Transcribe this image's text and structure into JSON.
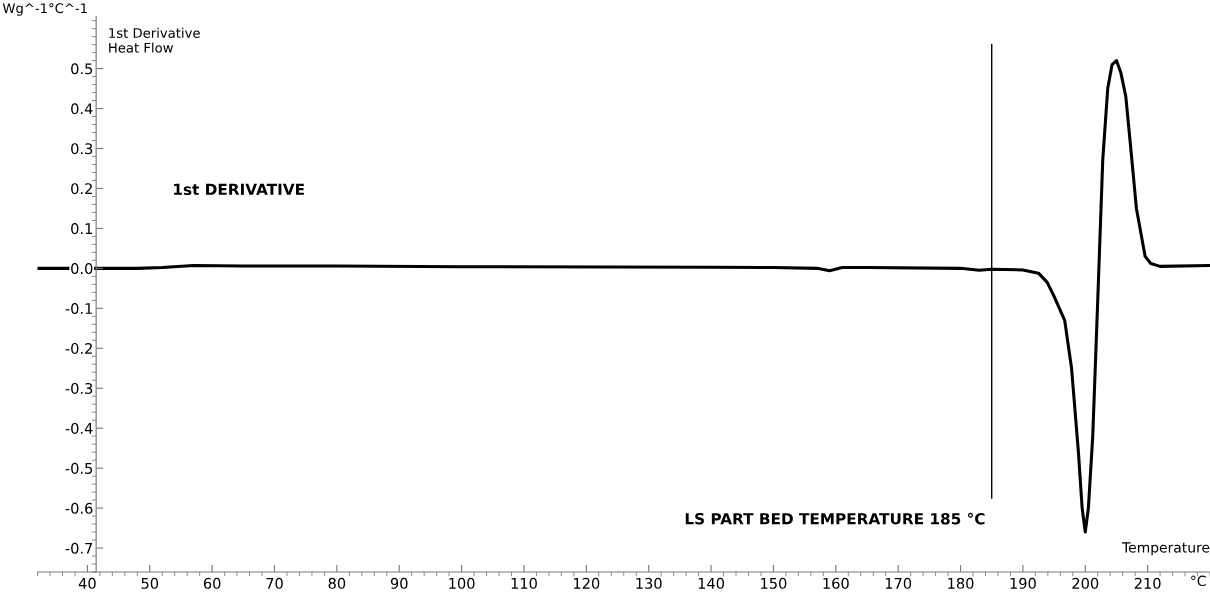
{
  "chart_data": {
    "type": "line",
    "xlabel": "Temperature",
    "ylabel": "Wg^-1°C^-1",
    "x": [
      32,
      48,
      52,
      57,
      65,
      80,
      100,
      140,
      150,
      157,
      159,
      161,
      165,
      180,
      183,
      185,
      190,
      192.5,
      193.9,
      195,
      196.7,
      197.8,
      198.9,
      199.5,
      200,
      200.5,
      201.2,
      202,
      202.8,
      203.6,
      204.3,
      205,
      205.7,
      206.5,
      207.3,
      208.2,
      209.6,
      210.5,
      212,
      220
    ],
    "series": [
      {
        "color": "#000000",
        "values": [
          0.0,
          0.0,
          0.002,
          0.007,
          0.006,
          0.006,
          0.004,
          0.003,
          0.002,
          0.0,
          -0.006,
          0.002,
          0.002,
          0.0,
          -0.005,
          -0.002,
          -0.004,
          -0.012,
          -0.035,
          -0.07,
          -0.13,
          -0.25,
          -0.46,
          -0.6,
          -0.66,
          -0.6,
          -0.42,
          -0.08,
          0.27,
          0.45,
          0.51,
          0.52,
          0.49,
          0.43,
          0.3,
          0.15,
          0.03,
          0.012,
          0.005,
          0.007
        ]
      }
    ],
    "xlim": [
      32,
      220
    ],
    "ylim": [
      -0.76,
      0.63
    ],
    "xticks": [
      40,
      50,
      60,
      70,
      80,
      90,
      100,
      110,
      120,
      130,
      140,
      150,
      160,
      170,
      180,
      190,
      200,
      210
    ],
    "yticks": [
      {
        "value": -0.7,
        "label": "-0.7"
      },
      {
        "value": -0.6,
        "label": "-0.6"
      },
      {
        "value": -0.5,
        "label": "-0.5"
      },
      {
        "value": -0.4,
        "label": "-0.4"
      },
      {
        "value": -0.3,
        "label": "-0.3"
      },
      {
        "value": -0.2,
        "label": "-0.2"
      },
      {
        "value": -0.1,
        "label": "-0.1"
      },
      {
        "value": 0,
        "label": "0.0"
      },
      {
        "value": 0.1,
        "label": "0.1"
      },
      {
        "value": 0.2,
        "label": "0.2"
      },
      {
        "value": 0.3,
        "label": "0.3"
      },
      {
        "value": 0.4,
        "label": "0.4"
      },
      {
        "value": 0.5,
        "label": "0.5"
      }
    ],
    "ref_lines": [
      {
        "axis": "x",
        "value": 185,
        "label": "LS PART BED TEMPERATURE 185 °C",
        "color": "#000000"
      }
    ],
    "annotations": [
      "1st Derivative\nHeat Flow",
      "1st DERIVATIVE",
      "°C"
    ],
    "grid": false,
    "legend": false,
    "marker": "none",
    "line_style": "solid"
  }
}
